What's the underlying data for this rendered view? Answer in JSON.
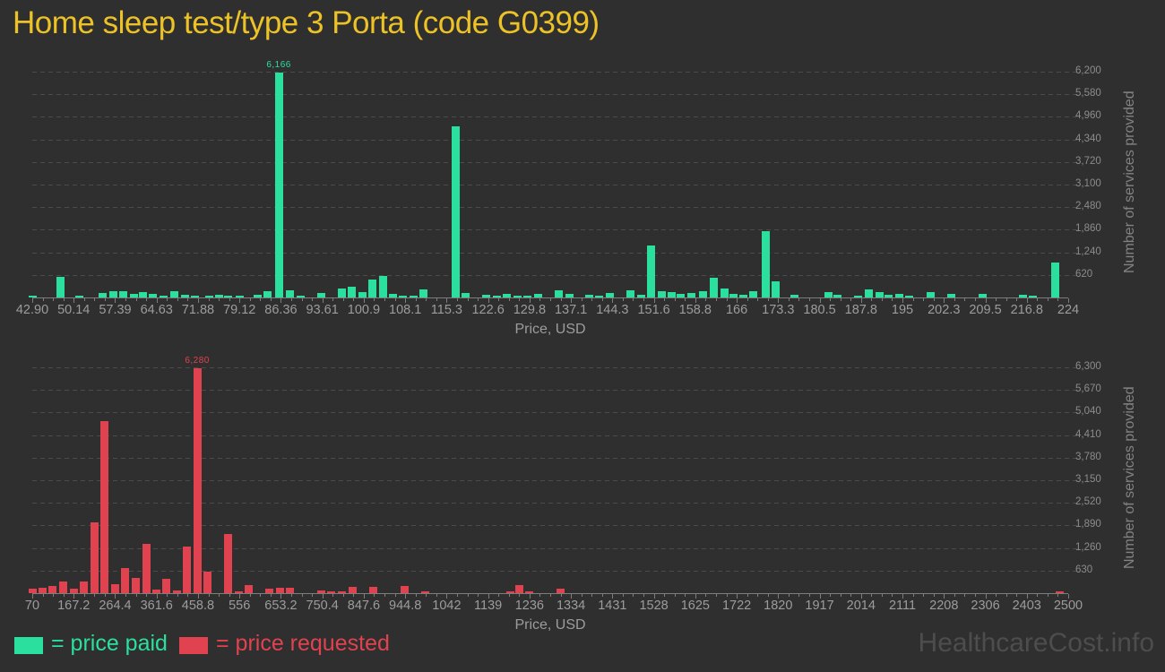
{
  "title": "Home sleep test/type 3 Porta (code G0399)",
  "watermark": "HealthcareCost.info",
  "legend": [
    {
      "label": "= price paid",
      "color": "#2bdf9e"
    },
    {
      "label": "= price requested",
      "color": "#e04250"
    }
  ],
  "chart_data": [
    {
      "type": "bar",
      "name": "price-paid-histogram",
      "series_name": "price paid",
      "color": "#2bdf9e",
      "title": "Home sleep test/type 3 Porta (code G0399)",
      "xlabel": "Price, USD",
      "ylabel": "Number of services provided",
      "peak_label": "6,166",
      "x_ticks": [
        "42.90",
        "50.14",
        "57.39",
        "64.63",
        "71.88",
        "79.12",
        "86.36",
        "93.61",
        "100.9",
        "108.1",
        "115.3",
        "122.6",
        "129.8",
        "137.1",
        "144.3",
        "151.6",
        "158.8",
        "166",
        "173.3",
        "180.5",
        "187.8",
        "195",
        "202.3",
        "209.5",
        "216.8",
        "224"
      ],
      "y_ticks": [
        "6,200",
        "5,580",
        "4,960",
        "4,340",
        "3,720",
        "3,100",
        "2,480",
        "1,860",
        "1,240",
        "620"
      ],
      "xlim": [
        42.9,
        224
      ],
      "ylim": [
        0,
        6324
      ],
      "grid": "dashed-horizontal",
      "bars": [
        [
          43.0,
          50
        ],
        [
          47.9,
          560
        ],
        [
          51.2,
          55
        ],
        [
          55.2,
          135
        ],
        [
          57.0,
          170
        ],
        [
          58.8,
          165
        ],
        [
          60.7,
          110
        ],
        [
          62.2,
          150
        ],
        [
          64.0,
          95
        ],
        [
          65.9,
          50
        ],
        [
          67.8,
          180
        ],
        [
          69.6,
          70
        ],
        [
          71.3,
          50
        ],
        [
          73.8,
          50
        ],
        [
          75.6,
          70
        ],
        [
          77.2,
          50
        ],
        [
          79.1,
          35
        ],
        [
          82.3,
          70
        ],
        [
          84.0,
          165
        ],
        [
          86.0,
          6166
        ],
        [
          88.0,
          205
        ],
        [
          89.8,
          40
        ],
        [
          93.4,
          125
        ],
        [
          97.0,
          250
        ],
        [
          98.8,
          290
        ],
        [
          100.7,
          150
        ],
        [
          102.4,
          500
        ],
        [
          104.2,
          580
        ],
        [
          106.0,
          110
        ],
        [
          107.7,
          50
        ],
        [
          109.5,
          50
        ],
        [
          111.3,
          220
        ],
        [
          116.9,
          4700
        ],
        [
          118.6,
          130
        ],
        [
          122.3,
          65
        ],
        [
          124.1,
          40
        ],
        [
          125.9,
          100
        ],
        [
          127.7,
          40
        ],
        [
          129.5,
          50
        ],
        [
          131.3,
          100
        ],
        [
          135.0,
          190
        ],
        [
          136.8,
          100
        ],
        [
          140.2,
          75
        ],
        [
          142.0,
          50
        ],
        [
          143.8,
          125
        ],
        [
          147.5,
          200
        ],
        [
          149.3,
          75
        ],
        [
          151.1,
          1420
        ],
        [
          152.9,
          170
        ],
        [
          154.7,
          150
        ],
        [
          156.3,
          100
        ],
        [
          158.2,
          125
        ],
        [
          160.2,
          180
        ],
        [
          162.1,
          540
        ],
        [
          163.9,
          250
        ],
        [
          165.5,
          100
        ],
        [
          167.2,
          80
        ],
        [
          168.9,
          165
        ],
        [
          171.2,
          1830
        ],
        [
          172.8,
          440
        ],
        [
          176.2,
          85
        ],
        [
          182.1,
          150
        ],
        [
          183.6,
          70
        ],
        [
          187.2,
          40
        ],
        [
          189.2,
          230
        ],
        [
          191.0,
          150
        ],
        [
          192.6,
          80
        ],
        [
          194.5,
          100
        ],
        [
          196.2,
          40
        ],
        [
          199.9,
          150
        ],
        [
          203.5,
          100
        ],
        [
          209.1,
          100
        ],
        [
          216.1,
          85
        ],
        [
          217.8,
          40
        ],
        [
          221.8,
          950
        ]
      ]
    },
    {
      "type": "bar",
      "name": "price-requested-histogram",
      "series_name": "price requested",
      "color": "#e04250",
      "xlabel": "Price, USD",
      "ylabel": "Number of services provided",
      "peak_label": "6,280",
      "x_ticks": [
        "70",
        "167.2",
        "264.4",
        "361.6",
        "458.8",
        "556",
        "653.2",
        "750.4",
        "847.6",
        "944.8",
        "1042",
        "1139",
        "1236",
        "1334",
        "1431",
        "1528",
        "1625",
        "1722",
        "1820",
        "1917",
        "2014",
        "2111",
        "2208",
        "2306",
        "2403",
        "2500"
      ],
      "y_ticks": [
        "6,300",
        "5,670",
        "5,040",
        "4,410",
        "3,780",
        "3,150",
        "2,520",
        "1,890",
        "1,260",
        "630"
      ],
      "xlim": [
        70,
        2500
      ],
      "ylim": [
        0,
        6425
      ],
      "grid": "dashed-horizontal",
      "bars": [
        [
          70,
          125
        ],
        [
          94,
          150
        ],
        [
          118,
          210
        ],
        [
          143,
          320
        ],
        [
          167,
          125
        ],
        [
          191,
          320
        ],
        [
          216,
          1975
        ],
        [
          240,
          4790
        ],
        [
          264,
          250
        ],
        [
          288,
          690
        ],
        [
          312,
          420
        ],
        [
          337,
          1380
        ],
        [
          361,
          100
        ],
        [
          385,
          400
        ],
        [
          409,
          85
        ],
        [
          433,
          1295
        ],
        [
          457,
          6280
        ],
        [
          481,
          605
        ],
        [
          530,
          1655
        ],
        [
          554,
          40
        ],
        [
          578,
          235
        ],
        [
          627,
          125
        ],
        [
          651,
          160
        ],
        [
          675,
          150
        ],
        [
          748,
          85
        ],
        [
          772,
          40
        ],
        [
          797,
          40
        ],
        [
          821,
          185
        ],
        [
          870,
          185
        ],
        [
          943,
          210
        ],
        [
          992,
          60
        ],
        [
          1192,
          50
        ],
        [
          1212,
          235
        ],
        [
          1236,
          60
        ],
        [
          1310,
          125
        ],
        [
          2480,
          60
        ]
      ]
    }
  ]
}
